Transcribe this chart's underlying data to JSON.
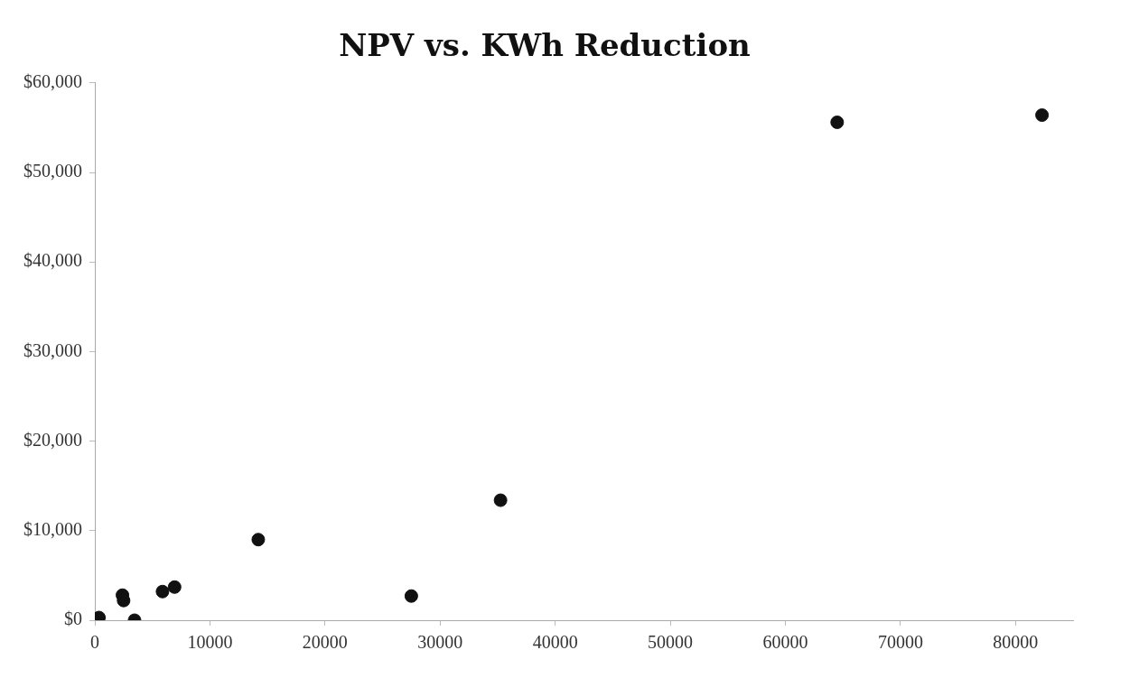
{
  "chart_data": {
    "type": "scatter",
    "title": "NPV vs. KWh Reduction",
    "series": [
      {
        "color": "#111111",
        "x": [
          360,
          2400,
          2500,
          3450,
          5880,
          6930,
          14200,
          27500,
          35250,
          64500,
          82300
        ],
        "values": [
          300,
          2800,
          2200,
          0,
          3200,
          3700,
          9000,
          2700,
          13400,
          55600,
          56400
        ]
      }
    ],
    "xlim": [
      0,
      85000
    ],
    "xticks": [
      0,
      10000,
      20000,
      30000,
      40000,
      50000,
      60000,
      70000,
      80000
    ],
    "ylim": [
      0,
      60000
    ],
    "yticks": [
      {
        "value": 0,
        "label": "$0"
      },
      {
        "value": 10000,
        "label": "$10,000"
      },
      {
        "value": 20000,
        "label": "$20,000"
      },
      {
        "value": 30000,
        "label": "$30,000"
      },
      {
        "value": 40000,
        "label": "$40,000"
      },
      {
        "value": 50000,
        "label": "$50,000"
      },
      {
        "value": 60000,
        "label": "$60,000"
      }
    ],
    "grid": false,
    "legend": false,
    "marker": "circle"
  }
}
